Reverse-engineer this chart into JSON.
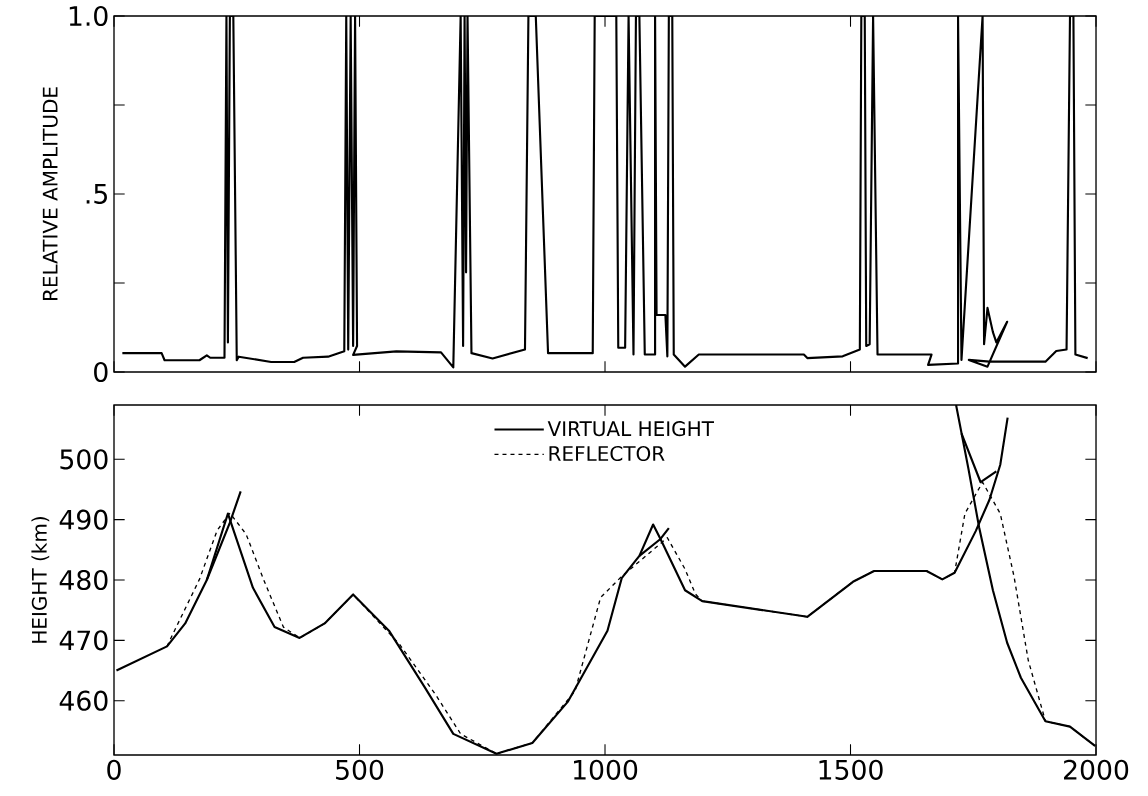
{
  "chart_data": [
    {
      "type": "line",
      "ylabel": "RELATIVE AMPLITUDE",
      "xlim": [
        0,
        2000
      ],
      "xticks": [
        {
          "value": 0,
          "label": null
        },
        {
          "value": 500,
          "label": null
        },
        {
          "value": 1000,
          "label": null
        },
        {
          "value": 1500,
          "label": null
        },
        {
          "value": 2000,
          "label": null
        }
      ],
      "ylim": [
        0,
        1
      ],
      "yticks": [
        0,
        {
          "value": 0.25,
          "label": null
        },
        {
          "value": 0.5,
          "label": ".5"
        },
        {
          "value": 0.75,
          "label": null
        },
        {
          "value": 1,
          "label": "1.0"
        }
      ],
      "tick_labels": "y",
      "series": [
        {
          "color": "#000000",
          "line_style": "solid",
          "x": [
            17,
            97,
            103,
            174,
            189,
            196,
            225,
            229,
            232,
            236,
            243,
            250,
            254,
            320,
            367,
            385,
            436,
            469,
            473,
            477,
            482,
            487,
            491,
            495,
            487,
            575,
            666,
            691,
            706,
            711,
            714,
            717,
            720,
            728,
            771,
            837,
            844,
            859,
            884,
            975,
            979,
            1023,
            1027,
            1041,
            1048,
            1058,
            1063,
            1070,
            1081,
            1102,
            1102,
            1105,
            1123,
            1127,
            1130,
            1137,
            1140,
            1163,
            1191,
            1405,
            1412,
            1484,
            1519,
            1522,
            1529,
            1532,
            1539,
            1546,
            1555,
            1665,
            1658,
            1719,
            1719,
            1726,
            1769,
            1772,
            1779,
            1790,
            1797,
            1819,
            1779,
            1741,
            1783,
            1897,
            1919,
            1940,
            1947,
            1954,
            1958,
            1983
          ],
          "values": [
            0.053,
            0.053,
            0.033,
            0.033,
            0.047,
            0.04,
            0.04,
            1.0,
            0.083,
            1.0,
            1.0,
            0.033,
            0.043,
            0.028,
            0.028,
            0.04,
            0.043,
            0.058,
            1.0,
            0.063,
            1.0,
            0.073,
            1.0,
            0.073,
            0.048,
            0.058,
            0.055,
            0.013,
            1.0,
            0.073,
            1.0,
            0.28,
            1.0,
            0.053,
            0.038,
            0.063,
            1.0,
            1.0,
            0.053,
            0.053,
            1.0,
            1.0,
            0.068,
            0.068,
            1.0,
            0.049,
            1.0,
            1.0,
            0.049,
            0.049,
            1.0,
            0.16,
            0.16,
            0.044,
            1.0,
            1.0,
            0.049,
            0.015,
            0.049,
            0.049,
            0.039,
            0.044,
            0.063,
            1.0,
            1.0,
            0.073,
            0.078,
            1.0,
            0.049,
            0.049,
            0.02,
            0.024,
            1.0,
            0.034,
            1.0,
            0.078,
            0.18,
            0.112,
            0.083,
            0.141,
            0.015,
            0.034,
            0.029,
            0.029,
            0.059,
            0.063,
            1.0,
            1.0,
            0.049,
            0.039
          ]
        }
      ]
    },
    {
      "type": "line",
      "ylabel": "HEIGHT (km)",
      "xlim": [
        0,
        2000
      ],
      "xticks": [
        0,
        500,
        1000,
        1500,
        2000
      ],
      "ylim": [
        451,
        509
      ],
      "yticks": [
        460,
        470,
        480,
        490,
        500
      ],
      "legend": "top",
      "series": [
        {
          "name": "VIRTUAL HEIGHT",
          "color": "#000000",
          "line_style": "solid",
          "x": [
            5,
            108,
            145,
            189,
            232,
            283,
            327,
            378,
            429,
            487,
            560,
            633,
            691,
            779,
            852,
            924,
            1005,
            1034,
            1070,
            1098,
            1113,
            1163,
            1198,
            1412,
            1505,
            1548,
            1655,
            1687,
            1712,
            1755,
            1783,
            1805,
            1820
          ],
          "values": [
            465,
            469,
            472.8,
            480,
            491,
            478.7,
            472.2,
            470.4,
            472.8,
            477.6,
            471.6,
            462.2,
            454.5,
            451.2,
            453,
            459.8,
            471.6,
            480.3,
            484,
            489.2,
            486.8,
            478.3,
            476.5,
            473.9,
            479.7,
            481.5,
            481.5,
            480.1,
            481.2,
            488.1,
            493.3,
            499.1,
            506.9
          ]
        },
        {
          "name": "REFLECTOR",
          "color": "#000000",
          "line_style": "dashed",
          "x": [
            108,
            116,
            174,
            210,
            236,
            269,
            305,
            345,
            378,
            429,
            487,
            582,
            655,
            706,
            779,
            852,
            939,
            991,
            1034,
            1127,
            1163,
            1184,
            1198,
            1412,
            1505,
            1548,
            1655,
            1687,
            1712,
            1733,
            1769,
            1805,
            1833,
            1862,
            1897,
            1947,
            1998
          ],
          "values": [
            469,
            470.4,
            480.1,
            488.2,
            491.1,
            487.6,
            480,
            472.2,
            470.4,
            472.8,
            477.6,
            469.3,
            461,
            454.5,
            451.2,
            453,
            461.6,
            477.1,
            480.6,
            487,
            481.8,
            477.7,
            476.5,
            473.9,
            479.7,
            481.5,
            481.5,
            480.1,
            481.2,
            491,
            496.2,
            491,
            480.6,
            466.7,
            456.6,
            455.7,
            452.5
          ]
        },
        {
          "color": "#000000",
          "line_style": "solid",
          "x": [
            189,
            236,
            258
          ],
          "values": [
            480,
            489.5,
            494.7
          ]
        },
        {
          "color": "#000000",
          "line_style": "solid",
          "x": [
            1070,
            1113,
            1130
          ],
          "values": [
            484,
            486.8,
            488.6
          ]
        },
        {
          "color": "#000000",
          "line_style": "solid",
          "x": [
            1715,
            1740,
            1762,
            1790,
            1819,
            1847,
            1897,
            1947,
            1998
          ],
          "values": [
            509,
            498.5,
            488.7,
            478.3,
            469.6,
            463.8,
            456.6,
            455.7,
            452.5
          ]
        },
        {
          "color": "#000000",
          "line_style": "solid",
          "x": [
            1726,
            1765,
            1797
          ],
          "values": [
            504.3,
            496.2,
            498
          ]
        }
      ]
    }
  ]
}
